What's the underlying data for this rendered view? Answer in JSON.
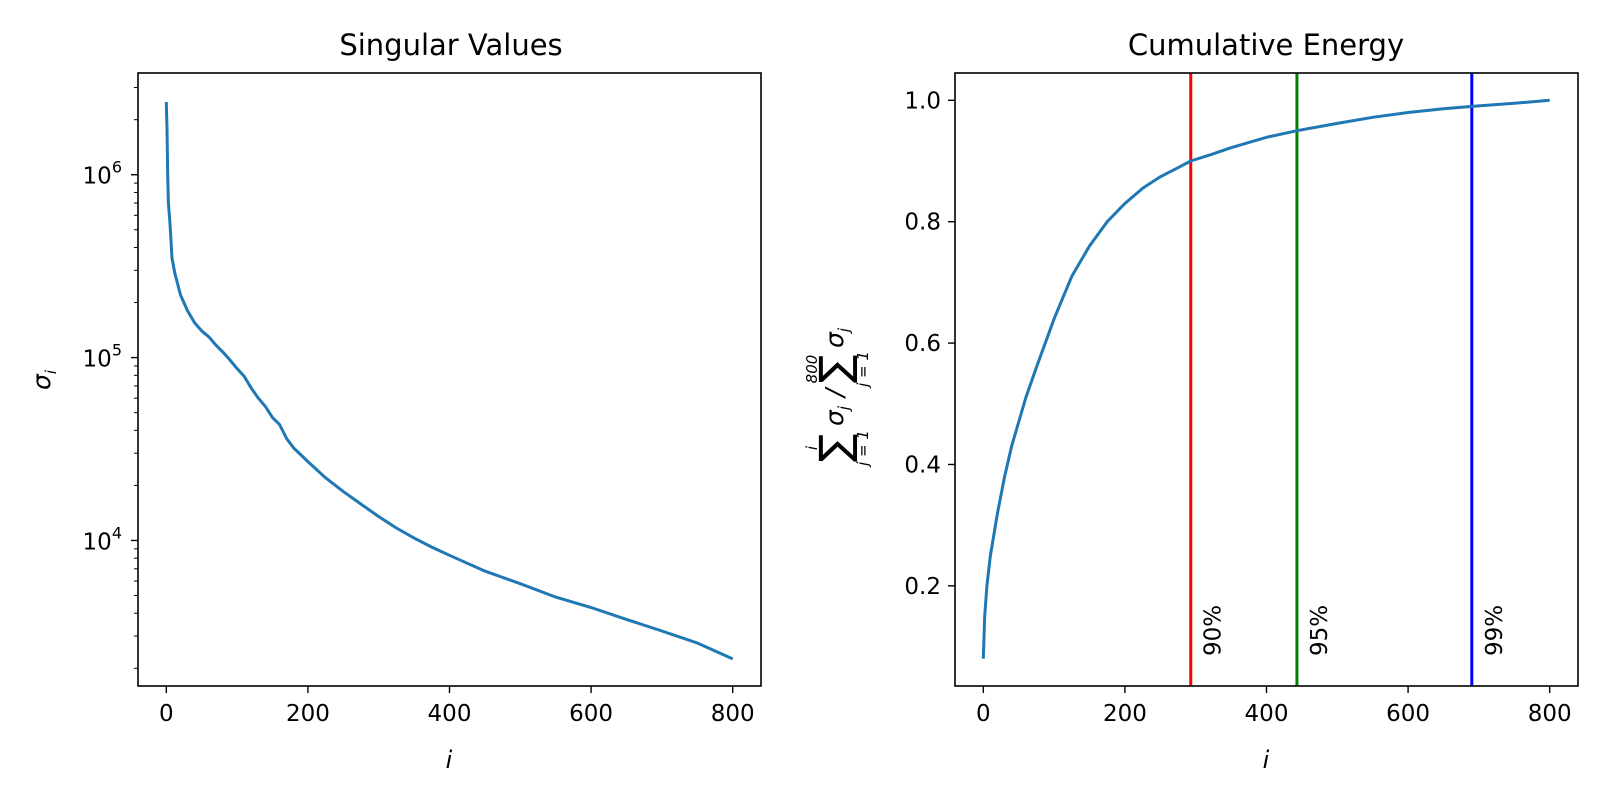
{
  "chart_data": [
    {
      "type": "line",
      "title": "Singular Values",
      "xlabel": "i",
      "ylabel": "σ",
      "ylabel_subscript": "i",
      "yscale": "log",
      "xlim": [
        -40,
        840
      ],
      "ylim": [
        1600,
        3600000
      ],
      "xticks": [
        0,
        200,
        400,
        600,
        800
      ],
      "yticks": [
        {
          "base": "10",
          "exp": "4",
          "value": 10000
        },
        {
          "base": "10",
          "exp": "5",
          "value": 100000
        },
        {
          "base": "10",
          "exp": "6",
          "value": 1000000
        }
      ],
      "color": "#1f77b4",
      "grid": false,
      "series": [
        {
          "x": [
            0,
            1,
            2,
            3,
            5,
            8,
            12,
            20,
            30,
            40,
            50,
            60,
            70,
            80,
            90,
            100,
            110,
            120,
            130,
            140,
            150,
            160,
            170,
            180,
            200,
            225,
            250,
            275,
            300,
            325,
            350,
            375,
            400,
            450,
            500,
            550,
            600,
            650,
            700,
            750,
            800
          ],
          "y": [
            2500000,
            1800000,
            1000000,
            700000,
            550000,
            350000,
            290000,
            220000,
            180000,
            155000,
            140000,
            130000,
            117000,
            107000,
            97000,
            87000,
            79000,
            68000,
            60000,
            54000,
            47000,
            43000,
            36000,
            32000,
            27000,
            22000,
            18500,
            15800,
            13500,
            11700,
            10300,
            9200,
            8300,
            6800,
            5800,
            4900,
            4300,
            3700,
            3200,
            2750,
            2250
          ]
        }
      ]
    },
    {
      "type": "line",
      "title": "Cumulative Energy",
      "xlabel": "i",
      "ylabel": "∑ σj / ∑ σj",
      "ylabel_parts": {
        "sum1_upper": "i",
        "sum1_lower": "j = 1",
        "sum2_upper": "800",
        "sum2_lower": "j = 1",
        "sigma": "σ",
        "sub": "j",
        "slash": "/"
      },
      "xlim": [
        -40,
        840
      ],
      "ylim": [
        0.035,
        1.045
      ],
      "xticks": [
        0,
        200,
        400,
        600,
        800
      ],
      "yticks": [
        0.2,
        0.4,
        0.6,
        0.8,
        1.0
      ],
      "color": "#1f77b4",
      "grid": false,
      "series": [
        {
          "x": [
            0,
            2,
            5,
            10,
            20,
            30,
            40,
            50,
            60,
            75,
            100,
            125,
            150,
            175,
            200,
            225,
            250,
            275,
            293,
            320,
            350,
            400,
            443,
            500,
            550,
            600,
            650,
            690,
            750,
            800
          ],
          "y": [
            0.08,
            0.15,
            0.2,
            0.25,
            0.32,
            0.38,
            0.43,
            0.47,
            0.51,
            0.56,
            0.64,
            0.71,
            0.76,
            0.8,
            0.83,
            0.855,
            0.874,
            0.889,
            0.9,
            0.91,
            0.922,
            0.939,
            0.95,
            0.962,
            0.972,
            0.98,
            0.986,
            0.99,
            0.995,
            1.0
          ]
        }
      ],
      "thresholds": [
        {
          "x": 293,
          "label": "90%",
          "color": "#ff0000"
        },
        {
          "x": 443,
          "label": "95%",
          "color": "#008000"
        },
        {
          "x": 690,
          "label": "99%",
          "color": "#0000ff"
        }
      ]
    }
  ]
}
